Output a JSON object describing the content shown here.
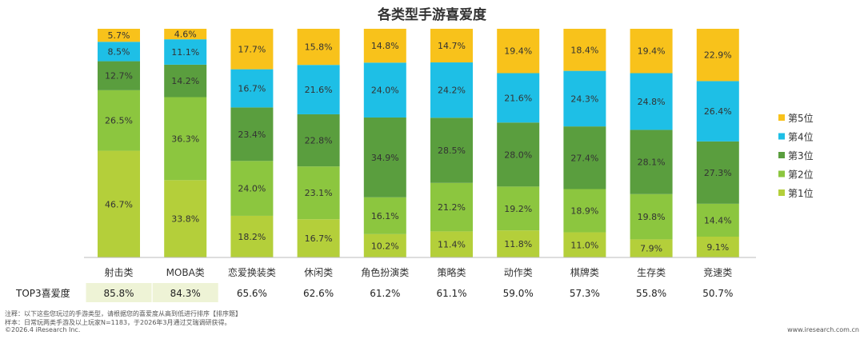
{
  "chart_data": {
    "type": "bar",
    "stacked": true,
    "title": "各类型手游喜爱度",
    "categories": [
      "射击类",
      "MOBA类",
      "恋爱换装类",
      "休闲类",
      "角色扮演类",
      "策略类",
      "动作类",
      "棋牌类",
      "生存类",
      "竞速类"
    ],
    "series": [
      {
        "name": "第1位",
        "color": "#b4cf3a",
        "values": [
          46.7,
          33.8,
          18.2,
          16.7,
          10.2,
          11.4,
          11.8,
          11.0,
          7.9,
          9.1
        ]
      },
      {
        "name": "第2位",
        "color": "#8cc63f",
        "values": [
          26.5,
          36.3,
          24.0,
          23.1,
          16.1,
          21.2,
          19.2,
          18.9,
          19.8,
          14.4
        ]
      },
      {
        "name": "第3位",
        "color": "#5a9e3e",
        "values": [
          12.7,
          14.2,
          23.4,
          22.8,
          34.9,
          28.5,
          28.0,
          27.4,
          28.1,
          27.3
        ]
      },
      {
        "name": "第4位",
        "color": "#1ebfe6",
        "values": [
          8.5,
          11.1,
          16.7,
          21.6,
          24.0,
          24.2,
          21.6,
          24.3,
          24.8,
          26.4
        ]
      },
      {
        "name": "第5位",
        "color": "#f8c21b",
        "values": [
          5.7,
          4.6,
          17.7,
          15.8,
          14.8,
          14.7,
          19.4,
          18.4,
          19.4,
          22.9
        ]
      }
    ],
    "ylim": [
      0,
      100
    ],
    "legend_position": "right",
    "top3": {
      "label": "TOP3喜爱度",
      "values": [
        "85.8%",
        "84.3%",
        "65.6%",
        "62.6%",
        "61.2%",
        "61.1%",
        "59.0%",
        "57.3%",
        "55.8%",
        "50.7%"
      ],
      "highlight_color": "#eef3d6",
      "highlight_count": 2
    }
  },
  "footer": {
    "note": "注释：以下这些您玩过的手游类型，请根据您的喜爱度从高到低进行排序【排序题】",
    "sample": "样本：日常玩两类手游及以上玩家N=1183，于2026年3月通过艾瑞调研获得。",
    "copyright": "©2026.4 iResearch Inc.",
    "website": "www.iresearch.com.cn"
  }
}
